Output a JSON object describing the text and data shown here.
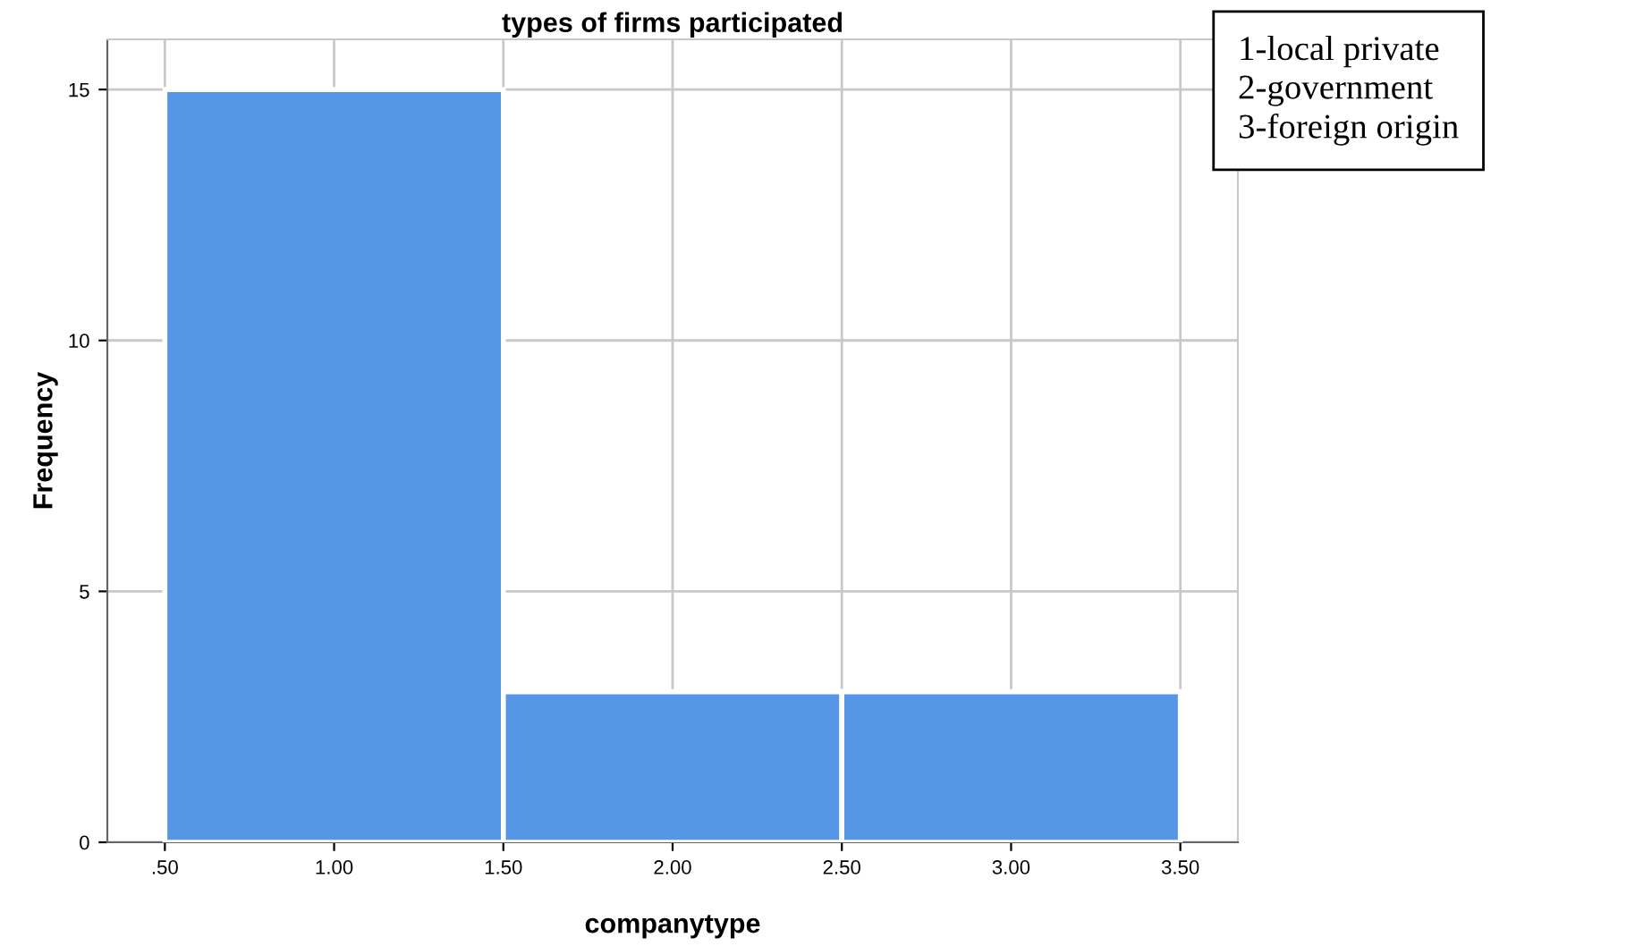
{
  "chart_data": {
    "type": "histogram",
    "title": "types of firms participated",
    "xlabel": "companytype",
    "ylabel": "Frequency",
    "bins": [
      0.5,
      1.5,
      2.5,
      3.5
    ],
    "values": [
      15,
      3,
      3
    ],
    "color": "#5596e6",
    "xlim": [
      0.33,
      3.67
    ],
    "ylim": [
      0,
      16
    ],
    "xticks": [
      {
        "value": 0.5,
        "label": ".50"
      },
      {
        "value": 1,
        "label": "1.00"
      },
      {
        "value": 1.5,
        "label": "1.50"
      },
      {
        "value": 2,
        "label": "2.00"
      },
      {
        "value": 2.5,
        "label": "2.50"
      },
      {
        "value": 3,
        "label": "3.00"
      },
      {
        "value": 3.5,
        "label": "3.50"
      }
    ],
    "yticks": [
      0,
      5,
      10,
      15
    ],
    "grid": true,
    "annotations": [
      "1-local private\n2-government\n3-foreign origin"
    ]
  }
}
